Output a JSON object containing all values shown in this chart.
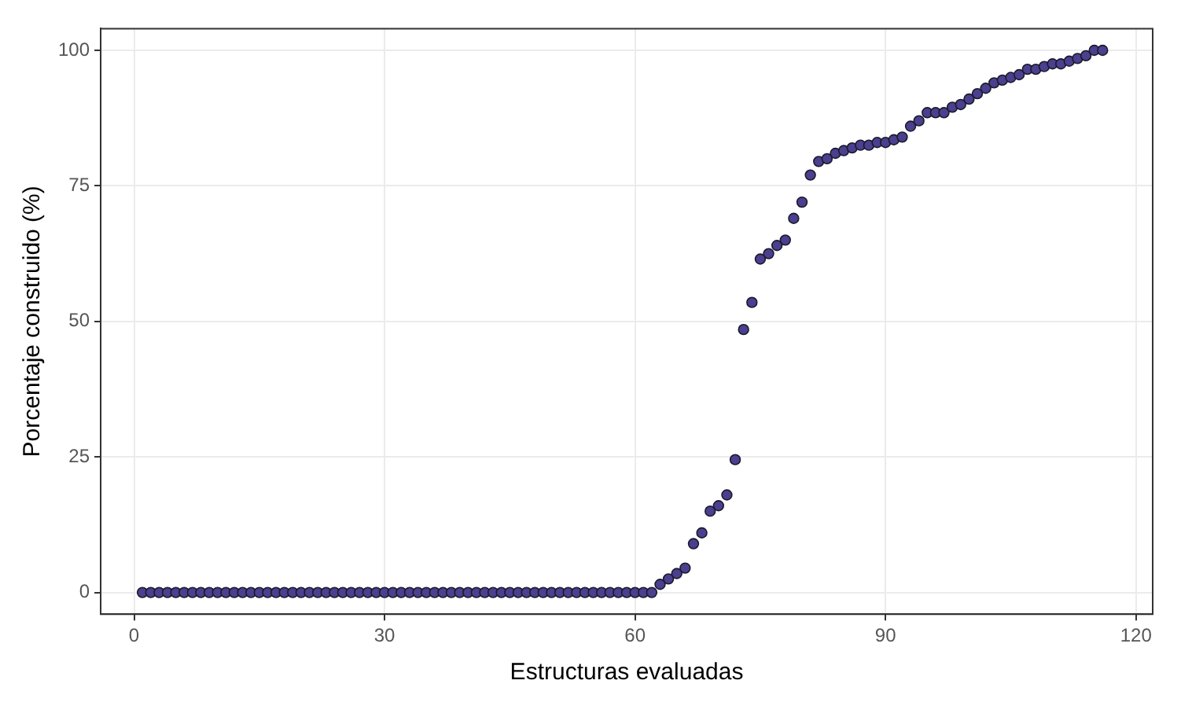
{
  "chart_data": {
    "type": "scatter",
    "xlabel": "Estructuras evaluadas",
    "ylabel": "Porcentaje construido (%)",
    "x": [
      1,
      2,
      3,
      4,
      5,
      6,
      7,
      8,
      9,
      10,
      11,
      12,
      13,
      14,
      15,
      16,
      17,
      18,
      19,
      20,
      21,
      22,
      23,
      24,
      25,
      26,
      27,
      28,
      29,
      30,
      31,
      32,
      33,
      34,
      35,
      36,
      37,
      38,
      39,
      40,
      41,
      42,
      43,
      44,
      45,
      46,
      47,
      48,
      49,
      50,
      51,
      52,
      53,
      54,
      55,
      56,
      57,
      58,
      59,
      60,
      61,
      62,
      63,
      64,
      65,
      66,
      67,
      68,
      69,
      70,
      71,
      72,
      73,
      74,
      75,
      76,
      77,
      78,
      79,
      80,
      81,
      82,
      83,
      84,
      85,
      86,
      87,
      88,
      89,
      90,
      91,
      92,
      93,
      94,
      95,
      96,
      97,
      98,
      99,
      100,
      101,
      102,
      103,
      104,
      105,
      106,
      107,
      108,
      109,
      110,
      111,
      112,
      113,
      114,
      115,
      116
    ],
    "series": [
      {
        "color": "#4b3f8f",
        "values": [
          0,
          0,
          0,
          0,
          0,
          0,
          0,
          0,
          0,
          0,
          0,
          0,
          0,
          0,
          0,
          0,
          0,
          0,
          0,
          0,
          0,
          0,
          0,
          0,
          0,
          0,
          0,
          0,
          0,
          0,
          0,
          0,
          0,
          0,
          0,
          0,
          0,
          0,
          0,
          0,
          0,
          0,
          0,
          0,
          0,
          0,
          0,
          0,
          0,
          0,
          0,
          0,
          0,
          0,
          0,
          0,
          0,
          0,
          0,
          0,
          0,
          0,
          1.5,
          2.5,
          3.5,
          4.5,
          9,
          11,
          15,
          16,
          18,
          24.5,
          48.5,
          53.5,
          61.5,
          62.5,
          64,
          65,
          69,
          72,
          77,
          79.5,
          80,
          81,
          81.5,
          82,
          82.5,
          82.5,
          83,
          83,
          83.5,
          84,
          86,
          87,
          88.5,
          88.5,
          88.5,
          89.5,
          90,
          91,
          92,
          93,
          94,
          94.5,
          95,
          95.5,
          96.5,
          96.5,
          97,
          97.5,
          97.5,
          98,
          98.5,
          99,
          100,
          100
        ]
      }
    ],
    "xlim": [
      -4,
      122
    ],
    "xticks": [
      0,
      30,
      60,
      90,
      120
    ],
    "ylim": [
      -4,
      104
    ],
    "yticks": [
      0,
      25,
      50,
      75,
      100
    ],
    "grid": true,
    "marker": "circle"
  }
}
